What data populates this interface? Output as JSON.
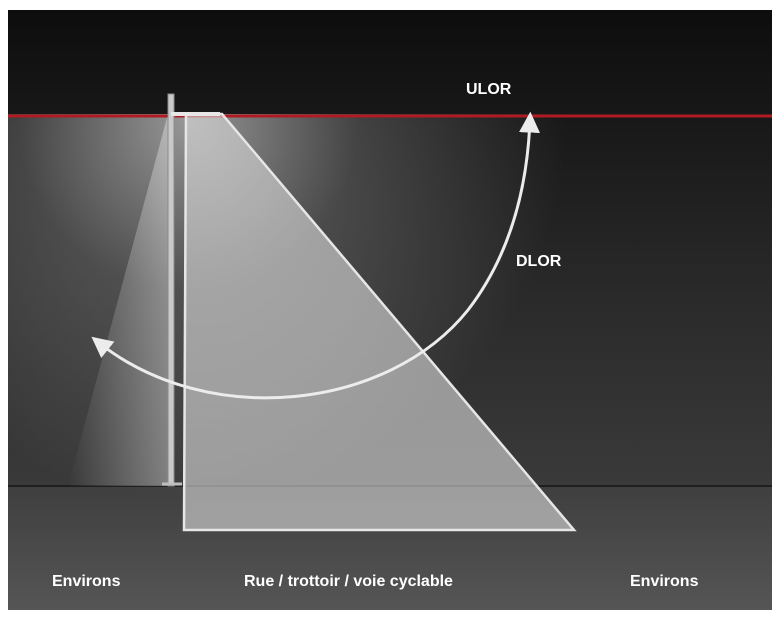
{
  "labels": {
    "ulor": "ULOR",
    "dlor": "DLOR",
    "environs_left": "Environs",
    "street": "Rue / trottoir / voie cyclable",
    "environs_right": "Environs"
  },
  "colors": {
    "sky_top": "#0d0d0d",
    "sky_bottom": "#3c3c3c",
    "ground": "#4a4a4a",
    "horizon_line": "#b01a22",
    "light_fill": "#d8d8d8",
    "stroke": "#e6e6e6",
    "text": "#ffffff"
  }
}
